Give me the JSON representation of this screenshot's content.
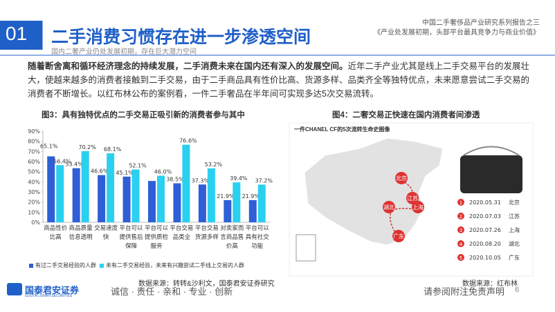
{
  "header": {
    "number": "01",
    "title": "二手消费习惯存在进一步渗透空间",
    "subtitle": "国内二奢产业仍处发展初期，存在巨大潜力空间",
    "report_line1": "中国二手奢侈品产业研究系列报告之三",
    "report_line2": "《产业处发展初期，头部平台最具竞争力与商业价值》"
  },
  "body": {
    "lead": "随着断舍离和循环经济理念的持续发展，二手消费未来在国内还有深入的发展空间。",
    "text": "近年二手产业尤其是线上二手交易平台的发展壮大，使越来越多的消费者接触到二手交易，由于二手商品具有性价比高、货源多样、品类齐全等独特优点，未来愿意尝试二手交易的消费者不断增长。以红布林公布的案例看，一件二手奢品在半年间可实现多达5次交易流转。"
  },
  "figure3": {
    "title": "图3：具有独特优点的二手交易正吸引新的消费者参与其中",
    "source": "数据来源：转转&沙利文，国泰君安证券研究",
    "chart_data": {
      "type": "bar",
      "categories": [
        "商品性价比高",
        "商品质量信息透明",
        "交易速度快",
        "平台可以提供售后保障",
        "平台可以提供质检服务",
        "平台交易品类全",
        "平台交易货源多样",
        "对卖家而言商品售价高",
        "平台可以具有社交功能"
      ],
      "series": [
        {
          "name": "有过二手交易经验的人群",
          "color": "#2e5fd6",
          "values": [
            65.1,
            53.4,
            46.6,
            45.1,
            40.8,
            38.5,
            37.3,
            21.9,
            21.9
          ],
          "value_labels": [
            "65.1%",
            "53.4%",
            "46.6%",
            "45.1%",
            null,
            "38.5%",
            "37.3%",
            "21.9%",
            "21.9%"
          ]
        },
        {
          "name": "未有二手交易经验，未来有兴趣尝试二手线上交易的人群",
          "color": "#2ad0f0",
          "values": [
            56.4,
            70.2,
            68.1,
            52.1,
            46.0,
            76.6,
            53.2,
            39.4,
            37.2
          ],
          "value_labels": [
            "56.4%",
            "70.2%",
            "68.1%",
            "52.1%",
            "46.0%",
            "76.6%",
            "53.2%",
            "39.4%",
            "37.2%"
          ]
        }
      ],
      "ylim": [
        0,
        90
      ],
      "yticks": [
        {
          "value": 0,
          "label": "0%"
        },
        {
          "value": 10,
          "label": "10%"
        },
        {
          "value": 20,
          "label": "20%"
        },
        {
          "value": 30,
          "label": "30%"
        },
        {
          "value": 40,
          "label": "40%"
        },
        {
          "value": 50,
          "label": "50%"
        },
        {
          "value": 60,
          "label": "60%"
        },
        {
          "value": 70,
          "label": "70%"
        },
        {
          "value": 80,
          "label": "80%"
        },
        {
          "value": 90,
          "label": "90%"
        }
      ],
      "legend": "bottom"
    }
  },
  "figure4": {
    "title": "图4：二奢交易正快速在国内消费者间渗透",
    "caption": "一件CHANEL CF的5次流转生命史图像",
    "source": "数据来源：红布林",
    "cities": [
      "北京",
      "江苏",
      "上海",
      "湖北",
      "广东"
    ],
    "timeline": [
      {
        "n": "1",
        "date": "2020.05.31",
        "city": "北京"
      },
      {
        "n": "2",
        "date": "2020.07.03",
        "city": "江苏"
      },
      {
        "n": "3",
        "date": "2020.07.26",
        "city": "上海"
      },
      {
        "n": "4",
        "date": "2020.08.20",
        "city": "湖北"
      },
      {
        "n": "5",
        "date": "2020.10.05",
        "city": "广东"
      }
    ]
  },
  "footer": {
    "brand": "国泰君安证券",
    "brand_en": "GUOTAI JUNAN SECURITIES",
    "slogan": "诚信 · 责任 · 亲和 · 专业 · 创新",
    "disclaimer": "请参阅附注免责声明",
    "page": "6"
  }
}
